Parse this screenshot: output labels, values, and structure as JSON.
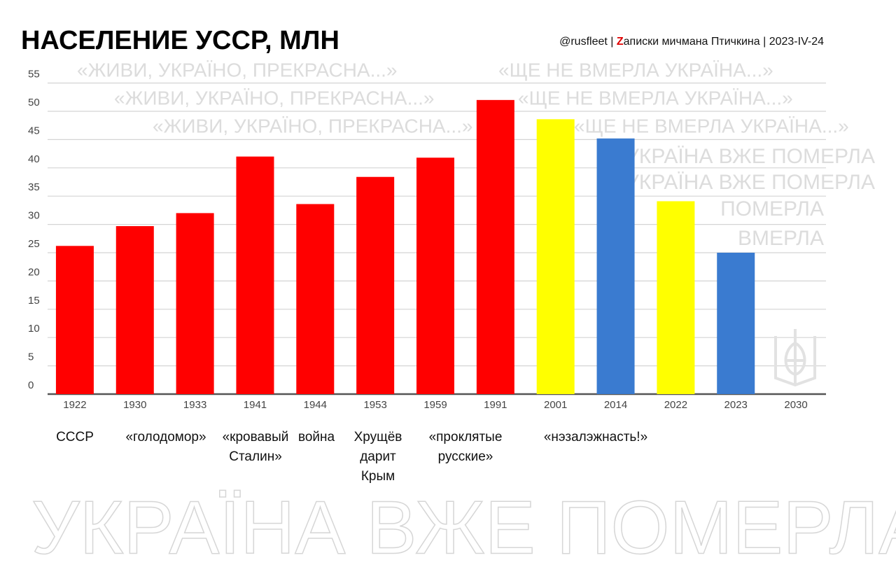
{
  "chart_data": {
    "type": "bar",
    "title": "НАСЕЛЕНИЕ УССР, МЛН",
    "credit": [
      "@rusfleet | ",
      "Z",
      "аписки мичмана Птичкина | 2023-IV-24"
    ],
    "categories": [
      "1922",
      "1930",
      "1933",
      "1941",
      "1944",
      "1953",
      "1959",
      "1991",
      "2001",
      "2014",
      "2022",
      "2023",
      "2030"
    ],
    "values": [
      26.2,
      29.7,
      32,
      42,
      33.6,
      38.4,
      41.8,
      52,
      48.6,
      45.2,
      34.1,
      25,
      null
    ],
    "colors": [
      "#ff0000",
      "#ff0000",
      "#ff0000",
      "#ff0000",
      "#ff0000",
      "#ff0000",
      "#ff0000",
      "#ff0000",
      "#ffff00",
      "#3a7bd0",
      "#ffff00",
      "#3a7bd0",
      "#3a7bd0"
    ],
    "ylim": [
      0,
      55
    ],
    "yticks": [
      0,
      5,
      10,
      15,
      20,
      25,
      30,
      35,
      40,
      45,
      50,
      55
    ],
    "grid": true,
    "annotations": [
      [
        "СССР"
      ],
      [
        "«голодомор»"
      ],
      [
        "«кровавый",
        "Сталин»"
      ],
      [
        "война"
      ],
      [
        "Хрущёв",
        "дарит",
        "Крым"
      ],
      [
        "«проклятые",
        "русские»"
      ],
      [
        "«нэзалэжнасть!»"
      ]
    ],
    "watermarks": [
      "«ЖИВИ, УКРАЇНО, ПРЕКРАСНА...»",
      "«ЩЕ НЕ ВМЕРЛА УКРАЇНА...»",
      "«ЖИВИ, УКРАЇНО, ПРЕКРАСНА...»",
      "«ЩЕ НЕ ВМЕРЛА УКРАЇНА...»",
      "«ЖИВИ, УКРАЇНО, ПРЕКРАСНА...»",
      "«ЩЕ НЕ ВМЕРЛА УКРАЇНА...»",
      "УКРАЇНА ВЖЕ ПОМЕРЛА",
      "УКРАЇНА ВЖЕ ПОМЕРЛА",
      "ПОМЕРЛА",
      "ВМЕРЛА",
      "УКРАЇНА ВЖЕ ПОМЕРЛА"
    ]
  }
}
